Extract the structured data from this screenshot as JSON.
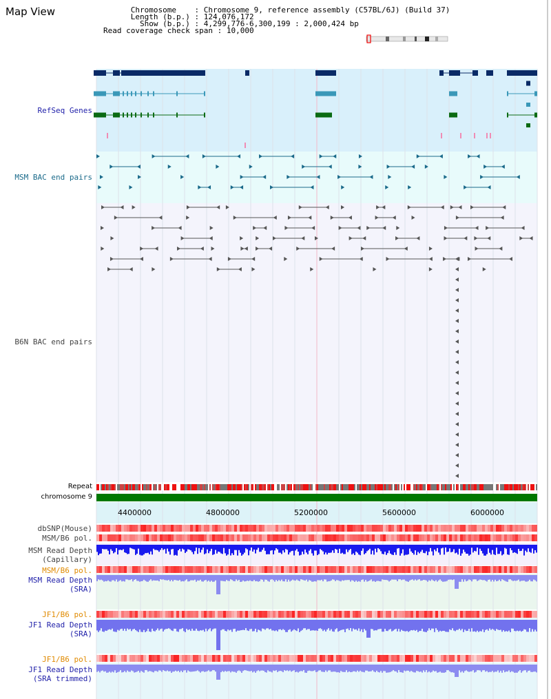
{
  "header": {
    "title": "Map View",
    "chromosome_label": "Chromosome",
    "chromosome_value": "Chromosome 9, reference assembly (C57BL/6J) (Build 37)",
    "length_label": "Length (b.p.)",
    "length_value": "124,076,172",
    "show_label": "Show (b.p.)",
    "show_value": "4,299,776-6,300,199 : 2,000,424 bp",
    "coverage_label": "Read coverage check span",
    "coverage_value": "10,000"
  },
  "tracks": {
    "refseq": "RefSeq Genes",
    "msm_bac": "MSM BAC end pairs",
    "b6n_bac": "B6N BAC end pairs",
    "repeat": "Repeat",
    "chromosome": "chromosome 9",
    "dbsnp": "dbSNP(Mouse)",
    "msm_b6_pol_1": "MSM/B6 pol.",
    "msm_depth_cap_1": "MSM Read Depth",
    "msm_depth_cap_2": "(Capillary)",
    "msm_b6_pol_2": "MSM/B6 pol.",
    "msm_depth_sra_1": "MSM Read Depth",
    "msm_depth_sra_2": "(SRA)",
    "jf1_pol_1": "JF1/B6 pol.",
    "jf1_depth_sra_1": "JF1 Read Depth",
    "jf1_depth_sra_2": "(SRA)",
    "jf1_pol_2": "JF1/B6 pol.",
    "jf1_depth_trim_1": "JF1 Read Depth",
    "jf1_depth_trim_2": "(SRA trimmed)"
  },
  "axis": {
    "ticks": [
      "4400000",
      "4800000",
      "5200000",
      "5600000",
      "6000000"
    ]
  },
  "colors": {
    "refseq_bg": "#d9f0fb",
    "msm_bg": "#e8fbfb",
    "b6n_bg": "#f4f4fc",
    "gene_navy": "#0a2a66",
    "gene_teal": "#3a98b8",
    "gene_green": "#0a6a12",
    "msm_bac": "#1a6a8a",
    "b6n_bac": "#555555",
    "chromosome": "#007800",
    "label_blue": "#2222aa",
    "label_teal": "#1a6a8a",
    "label_orange": "#e08a00",
    "label_gray": "#444444"
  }
}
